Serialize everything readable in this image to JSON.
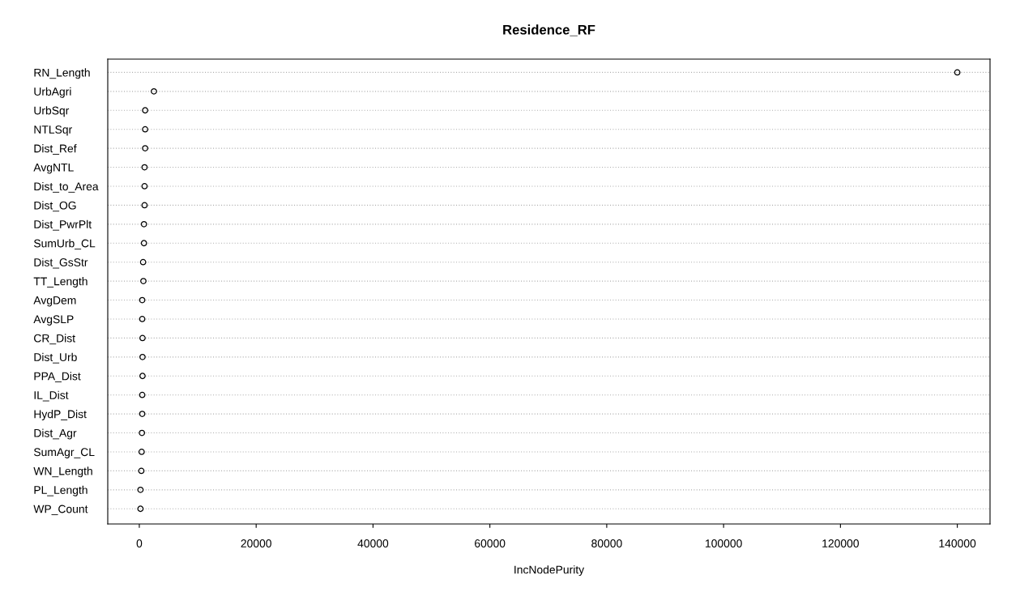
{
  "chart_data": {
    "type": "scatter",
    "title": "Residence_RF",
    "xlabel": "IncNodePurity",
    "categories": [
      "RN_Length",
      "UrbAgri",
      "UrbSqr",
      "NTLSqr",
      "Dist_Ref",
      "AvgNTL",
      "Dist_to_Area",
      "Dist_OG",
      "Dist_PwrPlt",
      "SumUrb_CL",
      "Dist_GsStr",
      "TT_Length",
      "AvgDem",
      "AvgSLP",
      "CR_Dist",
      "Dist_Urb",
      "PPA_Dist",
      "IL_Dist",
      "HydP_Dist",
      "Dist_Agr",
      "SumAgr_CL",
      "WN_Length",
      "PL_Length",
      "WP_Count"
    ],
    "orientation": "horizontal",
    "values": [
      140000,
      2500,
      1000,
      1000,
      1000,
      900,
      900,
      900,
      800,
      800,
      650,
      700,
      500,
      500,
      550,
      550,
      550,
      500,
      500,
      450,
      400,
      350,
      200,
      200
    ],
    "color": "#000000",
    "marker": "circle",
    "grid": "y",
    "legend": false,
    "xlim": [
      -5400,
      145600
    ],
    "xticks": [
      0,
      20000,
      40000,
      60000,
      80000,
      100000,
      120000,
      140000
    ]
  }
}
